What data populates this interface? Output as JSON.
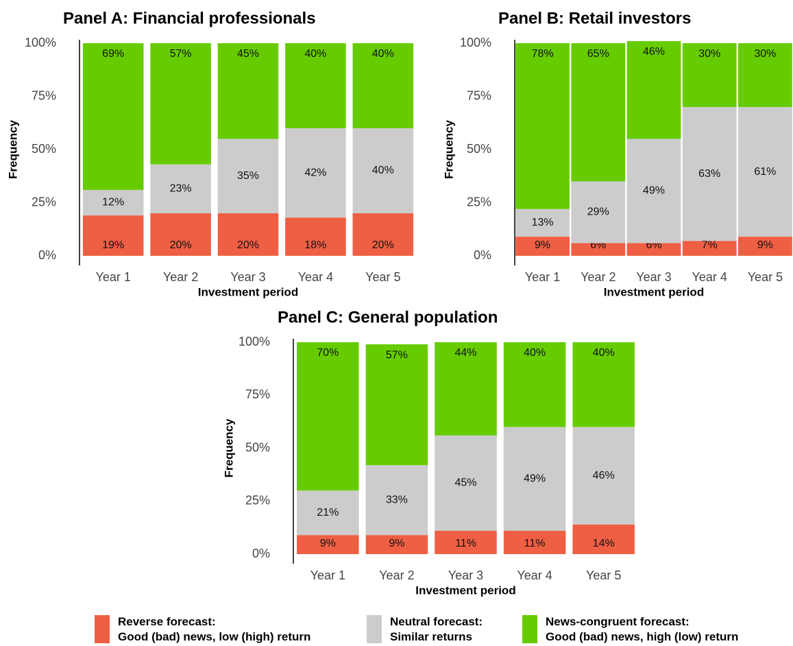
{
  "chart_data": [
    {
      "type": "bar",
      "stacked": true,
      "title": "Panel A: Financial professionals",
      "xlabel": "Investment period",
      "ylabel": "Frequency",
      "categories": [
        "Year 1",
        "Year 2",
        "Year 3",
        "Year 4",
        "Year 5"
      ],
      "ylim": [
        0,
        100
      ],
      "yticks": [
        {
          "value": 0,
          "label": "0%"
        },
        {
          "value": 25,
          "label": "25%"
        },
        {
          "value": 50,
          "label": "50%"
        },
        {
          "value": 75,
          "label": "75%"
        },
        {
          "value": 100,
          "label": "100%"
        }
      ],
      "series": [
        {
          "name": "Reverse forecast:\nGood (bad) news, low (high) return",
          "color": "#ef5f43",
          "values": [
            19,
            20,
            20,
            18,
            20
          ],
          "value_labels": [
            "19%",
            "20%",
            "20%",
            "18%",
            "20%"
          ]
        },
        {
          "name": "Neutral forecast:\nSimilar returns",
          "color": "#cccccc",
          "values": [
            12,
            23,
            35,
            42,
            40
          ],
          "value_labels": [
            "12%",
            "23%",
            "35%",
            "42%",
            "40%"
          ]
        },
        {
          "name": "News-congruent forecast:\nGood (bad) news, high (low) return",
          "color": "#66cc00",
          "values": [
            69,
            57,
            45,
            40,
            40
          ],
          "value_labels": [
            "69%",
            "57%",
            "45%",
            "40%",
            "40%"
          ]
        }
      ]
    },
    {
      "type": "bar",
      "stacked": true,
      "title": "Panel B: Retail investors",
      "xlabel": "Investment period",
      "ylabel": "Frequency",
      "categories": [
        "Year 1",
        "Year 2",
        "Year 3",
        "Year 4",
        "Year 5"
      ],
      "ylim": [
        0,
        100
      ],
      "yticks": [
        {
          "value": 0,
          "label": "0%"
        },
        {
          "value": 25,
          "label": "25%"
        },
        {
          "value": 50,
          "label": "50%"
        },
        {
          "value": 75,
          "label": "75%"
        },
        {
          "value": 100,
          "label": "100%"
        }
      ],
      "series": [
        {
          "color": "#ef5f43",
          "values": [
            9,
            6,
            6,
            7,
            9
          ],
          "value_labels": [
            "9%",
            "6%",
            "6%",
            "7%",
            "9%"
          ]
        },
        {
          "color": "#cccccc",
          "values": [
            13,
            29,
            49,
            63,
            61
          ],
          "value_labels": [
            "13%",
            "29%",
            "49%",
            "63%",
            "61%"
          ]
        },
        {
          "color": "#66cc00",
          "values": [
            78,
            65,
            46,
            30,
            30
          ],
          "value_labels": [
            "78%",
            "65%",
            "46%",
            "30%",
            "30%"
          ]
        }
      ]
    },
    {
      "type": "bar",
      "stacked": true,
      "title": "Panel C: General population",
      "xlabel": "Investment period",
      "ylabel": "Frequency",
      "categories": [
        "Year 1",
        "Year 2",
        "Year 3",
        "Year 4",
        "Year 5"
      ],
      "ylim": [
        0,
        100
      ],
      "yticks": [
        {
          "value": 0,
          "label": "0%"
        },
        {
          "value": 25,
          "label": "25%"
        },
        {
          "value": 50,
          "label": "50%"
        },
        {
          "value": 75,
          "label": "75%"
        },
        {
          "value": 100,
          "label": "100%"
        }
      ],
      "series": [
        {
          "color": "#ef5f43",
          "values": [
            9,
            9,
            11,
            11,
            14
          ],
          "value_labels": [
            "9%",
            "9%",
            "11%",
            "11%",
            "14%"
          ]
        },
        {
          "color": "#cccccc",
          "values": [
            21,
            33,
            45,
            49,
            46
          ],
          "value_labels": [
            "21%",
            "33%",
            "45%",
            "49%",
            "46%"
          ]
        },
        {
          "color": "#66cc00",
          "values": [
            70,
            57,
            44,
            40,
            40
          ],
          "value_labels": [
            "70%",
            "57%",
            "44%",
            "40%",
            "40%"
          ]
        }
      ]
    }
  ]
}
